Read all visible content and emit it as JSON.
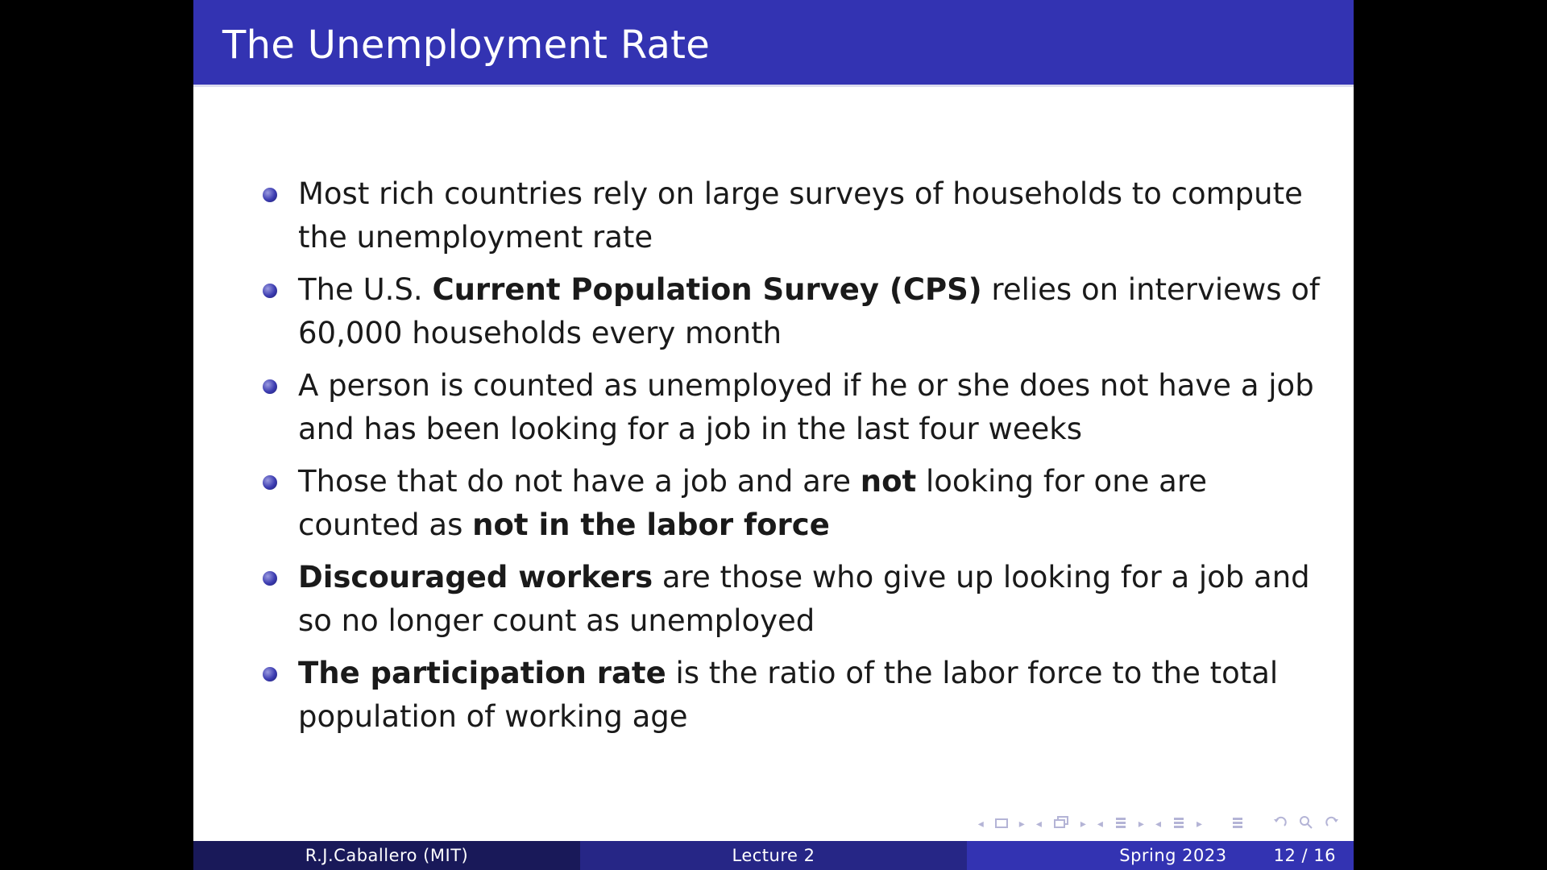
{
  "slide": {
    "title": "The Unemployment Rate",
    "bullets": [
      {
        "parts": [
          {
            "text": "Most rich countries rely on large surveys of households to compute the unemployment rate",
            "bold": false
          }
        ]
      },
      {
        "parts": [
          {
            "text": "The U.S. ",
            "bold": false
          },
          {
            "text": "Current Population Survey (CPS)",
            "bold": true
          },
          {
            "text": " relies on interviews of 60,000 households every month",
            "bold": false
          }
        ]
      },
      {
        "parts": [
          {
            "text": "A person is counted as unemployed if he or she does not have a job and has been looking for a job in the last four weeks",
            "bold": false
          }
        ]
      },
      {
        "parts": [
          {
            "text": "Those that do not have a job and  are ",
            "bold": false
          },
          {
            "text": "not",
            "bold": true
          },
          {
            "text": " looking for one are counted as ",
            "bold": false
          },
          {
            "text": "not in the labor force",
            "bold": true
          }
        ]
      },
      {
        "parts": [
          {
            "text": "Discouraged workers",
            "bold": true
          },
          {
            "text": " are those who give up looking for a job and so no longer count as unemployed",
            "bold": false
          }
        ]
      },
      {
        "parts": [
          {
            "text": "The participation rate",
            "bold": true
          },
          {
            "text": " is the ratio of the labor force to the total population of working age",
            "bold": false
          }
        ]
      }
    ]
  },
  "footer": {
    "author": "R.J.Caballero  (MIT)",
    "lecture": "Lecture 2",
    "date": "Spring 2023",
    "page": "12 / 16"
  },
  "nav_icons": [
    "nav-frame-icon",
    "nav-subsection-icon",
    "nav-section-icon",
    "nav-section-alt-icon",
    "nav-appendix-icon",
    "nav-back-icon",
    "nav-search-icon",
    "nav-forward-icon"
  ],
  "colors": {
    "title_bar": "#3333b2",
    "footer_left": "#191959",
    "footer_mid": "#262686",
    "footer_right": "#3333b2",
    "bullet": "#3b3bb0"
  }
}
